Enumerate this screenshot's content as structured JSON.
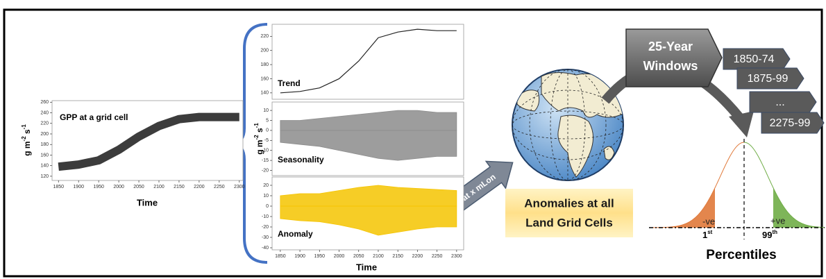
{
  "gpp": {
    "title": "GPP at a grid cell",
    "y_label": {
      "base": "g m",
      "sup1": "-2",
      "mid": " s",
      "sup2": "-1"
    },
    "x_label": "Time",
    "xlim": [
      1834,
      2309
    ],
    "xticks": [
      1850,
      1900,
      1950,
      2000,
      2050,
      2100,
      2150,
      2200,
      2250,
      2300
    ],
    "ylim": [
      112,
      263
    ],
    "yticks": [
      120,
      140,
      160,
      180,
      200,
      220,
      240,
      260
    ],
    "x": [
      1850,
      1900,
      1950,
      2000,
      2050,
      2100,
      2150,
      2200,
      2250,
      2300
    ],
    "values": [
      138,
      142,
      150,
      170,
      195,
      215,
      228,
      232,
      232,
      232
    ],
    "color": "#1a1a1a"
  },
  "components": {
    "x_label": "Time",
    "y_label": {
      "base": "g m",
      "sup1": "-2",
      "mid": " s",
      "sup2": "-1"
    },
    "xlim": [
      1829,
      2318
    ],
    "xticks": [
      1850,
      1900,
      1950,
      2000,
      2050,
      2100,
      2150,
      2200,
      2250,
      2300
    ],
    "x": [
      1850,
      1900,
      1950,
      2000,
      2050,
      2100,
      2150,
      2200,
      2250,
      2300
    ],
    "panels": [
      {
        "title": "Trend",
        "ylim": [
          131,
          237
        ],
        "yticks": [
          140,
          160,
          180,
          200,
          220
        ],
        "values": [
          140,
          142,
          147,
          160,
          185,
          218,
          226,
          230,
          228,
          228
        ],
        "color": "#222222"
      },
      {
        "title": "Seasonality",
        "ylim": [
          -22.6,
          14.2
        ],
        "yticks": [
          -20,
          -15,
          -10,
          -5,
          0,
          5,
          10
        ],
        "upper": [
          5,
          5,
          6,
          7,
          8,
          9,
          10,
          10,
          9,
          9
        ],
        "lower": [
          -6,
          -7,
          -8,
          -10,
          -12,
          -14,
          -15,
          -14,
          -13,
          -13
        ],
        "color": "#8c8c8c"
      },
      {
        "title": "Anomaly",
        "ylim": [
          -42,
          28
        ],
        "yticks": [
          -40,
          -30,
          -20,
          -10,
          0,
          10,
          20
        ],
        "upper": [
          10,
          12,
          12,
          15,
          18,
          20,
          18,
          17,
          16,
          15
        ],
        "lower": [
          -12,
          -14,
          -15,
          -18,
          -22,
          -28,
          -25,
          -22,
          -20,
          -20
        ],
        "color": "#f5c400"
      }
    ]
  },
  "arrow_label": "nLat x mLon",
  "anomalies_box": {
    "lines": [
      "Anomalies at all",
      "Land Grid Cells"
    ]
  },
  "windows": {
    "title_lines": [
      "25-Year",
      "Windows"
    ],
    "items": [
      "1850-74",
      "1875-99",
      "...",
      "2275-99"
    ]
  },
  "percentiles": {
    "title": "Percentiles",
    "low_tail": "-ve",
    "high_tail": "+ve",
    "low": {
      "number": "1",
      "suffix": "st"
    },
    "high": {
      "number": "99",
      "suffix": "th"
    }
  }
}
